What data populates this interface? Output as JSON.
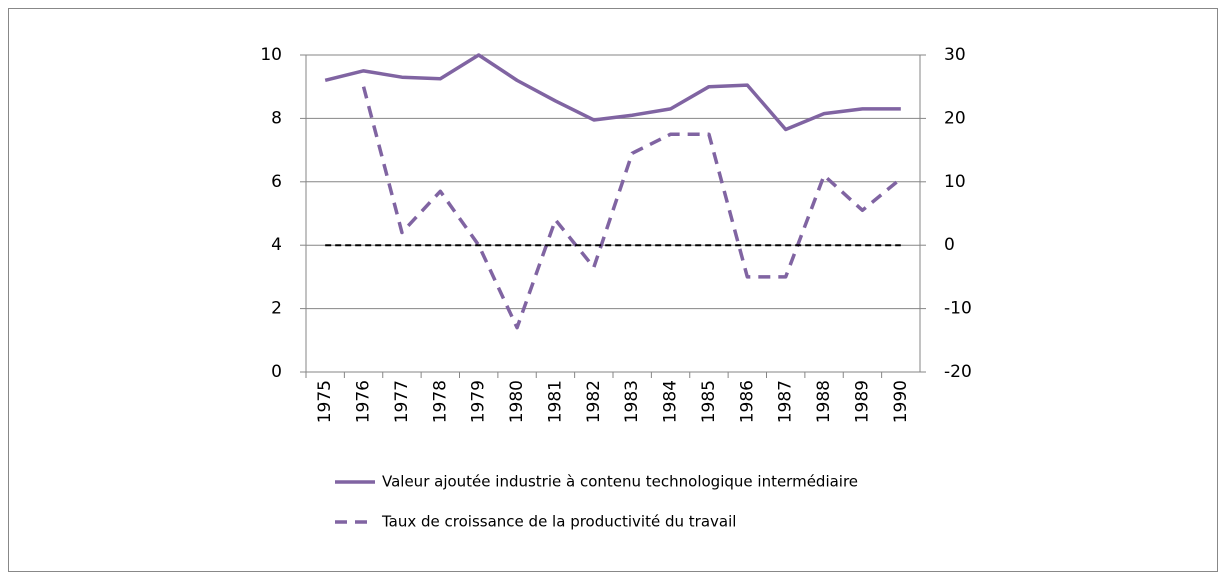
{
  "chart_data": {
    "type": "line",
    "categories": [
      "1975",
      "1976",
      "1977",
      "1978",
      "1979",
      "1980",
      "1981",
      "1982",
      "1983",
      "1984",
      "1985",
      "1986",
      "1987",
      "1988",
      "1989",
      "1990"
    ],
    "series": [
      {
        "name": "Valeur ajoutée industrie à contenu technologique intermédiaire",
        "color": "#8064a2",
        "dash": "solid",
        "axis": "y",
        "values": [
          9.2,
          9.5,
          9.3,
          9.25,
          10.0,
          9.2,
          8.55,
          7.95,
          8.1,
          8.3,
          9.0,
          9.05,
          7.65,
          8.15,
          8.3,
          8.3
        ]
      },
      {
        "name": "Taux de croissance de la productivité du travail",
        "color": "#8064a2",
        "dash": "dashed",
        "axis": "y2",
        "values": [
          null,
          25,
          2,
          8.5,
          0,
          -13,
          4,
          -3.5,
          14.5,
          17.5,
          17.5,
          -5,
          -5,
          11,
          5.5,
          10.5
        ]
      },
      {
        "color": "#000000",
        "dash": "dotted",
        "axis": "y2",
        "values": [
          0,
          0,
          0,
          0,
          0,
          0,
          0,
          0,
          0,
          0,
          0,
          0,
          0,
          0,
          0,
          0
        ]
      }
    ],
    "ylim": [
      0,
      10
    ],
    "yticks": [
      0,
      2,
      4,
      6,
      8,
      10
    ],
    "y2lim": [
      -20,
      30
    ],
    "y2ticks": [
      -20,
      -10,
      0,
      10,
      20,
      30
    ],
    "grid": true
  }
}
